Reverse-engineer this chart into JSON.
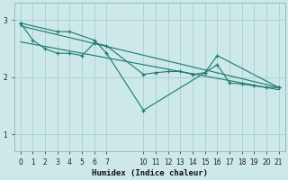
{
  "bg_color": "#cce8e8",
  "grid_color": "#aacfcf",
  "line_color": "#1a7a6e",
  "xlabel": "Humidex (Indice chaleur)",
  "xlim": [
    -0.5,
    21.5
  ],
  "ylim": [
    0.7,
    3.3
  ],
  "yticks": [
    1,
    2,
    3
  ],
  "xticks": [
    0,
    1,
    2,
    3,
    4,
    5,
    6,
    7,
    10,
    11,
    12,
    13,
    14,
    15,
    16,
    17,
    18,
    19,
    20,
    21
  ],
  "series_jagged_x": [
    0,
    3,
    4,
    6,
    7,
    10,
    15,
    16,
    21
  ],
  "series_jagged_y": [
    2.95,
    2.8,
    2.8,
    2.65,
    2.42,
    1.42,
    2.08,
    2.38,
    1.82
  ],
  "series_smooth_x": [
    0,
    1,
    2,
    3,
    4,
    5,
    6,
    7,
    10,
    11,
    12,
    13,
    14,
    15,
    16,
    17,
    18,
    19,
    20,
    21
  ],
  "series_smooth_y": [
    2.95,
    2.65,
    2.5,
    2.42,
    2.42,
    2.38,
    2.6,
    2.55,
    2.05,
    2.08,
    2.1,
    2.1,
    2.05,
    2.08,
    2.22,
    1.9,
    1.88,
    1.85,
    1.82,
    1.82
  ],
  "trend1_x": [
    0,
    21
  ],
  "trend1_y": [
    2.9,
    1.82
  ],
  "trend2_x": [
    0,
    21
  ],
  "trend2_y": [
    2.62,
    1.78
  ]
}
